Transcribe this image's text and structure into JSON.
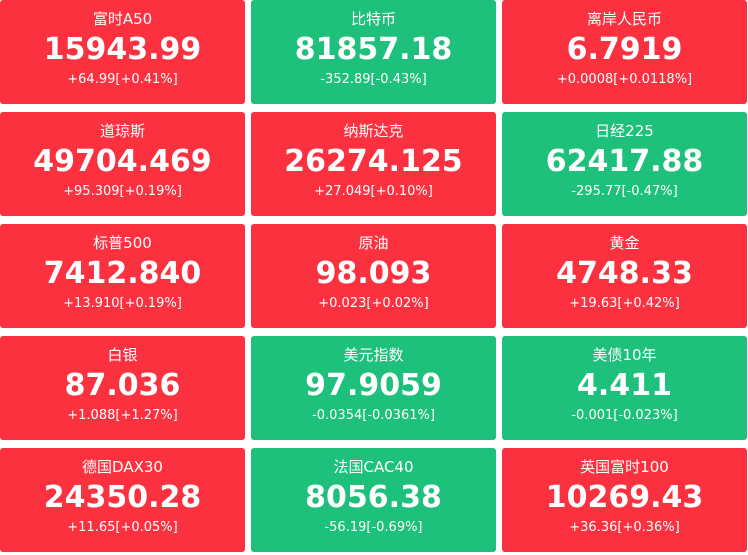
{
  "tiles": [
    {
      "name": "富时A50",
      "price": "15943.99",
      "change": "+64.99[+0.41%]",
      "color": "#fc3140"
    },
    {
      "name": "比特币",
      "price": "81857.18",
      "change": "-352.89[-0.43%]",
      "color": "#1dc17b"
    },
    {
      "name": "离岸人民币",
      "price": "6.7919",
      "change": "+0.0008[+0.0118%]",
      "color": "#fc3140"
    },
    {
      "name": "道琼斯",
      "price": "49704.469",
      "change": "+95.309[+0.19%]",
      "color": "#fc3140"
    },
    {
      "name": "纳斯达克",
      "price": "26274.125",
      "change": "+27.049[+0.10%]",
      "color": "#fc3140"
    },
    {
      "name": "日经225",
      "price": "62417.88",
      "change": "-295.77[-0.47%]",
      "color": "#1dc17b"
    },
    {
      "name": "标普500",
      "price": "7412.840",
      "change": "+13.910[+0.19%]",
      "color": "#fc3140"
    },
    {
      "name": "原油",
      "price": "98.093",
      "change": "+0.023[+0.02%]",
      "color": "#fc3140"
    },
    {
      "name": "黄金",
      "price": "4748.33",
      "change": "+19.63[+0.42%]",
      "color": "#fc3140"
    },
    {
      "name": "白银",
      "price": "87.036",
      "change": "+1.088[+1.27%]",
      "color": "#fc3140"
    },
    {
      "name": "美元指数",
      "price": "97.9059",
      "change": "-0.0354[-0.0361%]",
      "color": "#1dc17b"
    },
    {
      "name": "美债10年",
      "price": "4.411",
      "change": "-0.001[-0.023%]",
      "color": "#1dc17b"
    },
    {
      "name": "德国DAX30",
      "price": "24350.28",
      "change": "+11.65[+0.05%]",
      "color": "#fc3140"
    },
    {
      "name": "法国CAC40",
      "price": "8056.38",
      "change": "-56.19[-0.69%]",
      "color": "#1dc17b"
    },
    {
      "name": "英国富时100",
      "price": "10269.43",
      "change": "+36.36[+0.36%]",
      "color": "#fc3140"
    }
  ]
}
